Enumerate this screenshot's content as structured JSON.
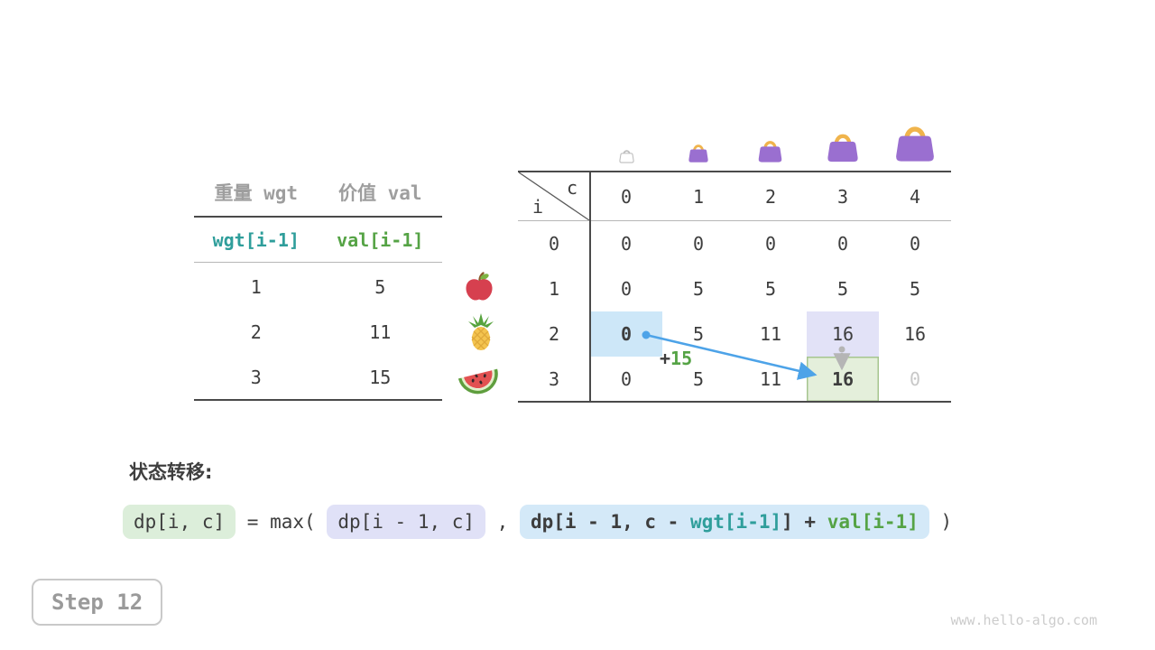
{
  "items_table": {
    "headers": {
      "weight": "重量 wgt",
      "value": "价值 val"
    },
    "formula_row": {
      "weight": "wgt[i-1]",
      "value": "val[i-1]"
    },
    "rows": [
      {
        "wgt": "1",
        "val": "5",
        "fruit": "apple-icon"
      },
      {
        "wgt": "2",
        "val": "11",
        "fruit": "pineapple-icon"
      },
      {
        "wgt": "3",
        "val": "15",
        "fruit": "watermelon-icon"
      }
    ]
  },
  "dp_table": {
    "corner": {
      "row_label": "i",
      "col_label": "c"
    },
    "col_headers": [
      "0",
      "1",
      "2",
      "3",
      "4"
    ],
    "row_headers": [
      "0",
      "1",
      "2",
      "3"
    ],
    "cells": [
      [
        "0",
        "0",
        "0",
        "0",
        "0"
      ],
      [
        "0",
        "5",
        "5",
        "5",
        "5"
      ],
      [
        "0",
        "5",
        "11",
        "16",
        "16"
      ],
      [
        "0",
        "5",
        "11",
        "16",
        "0"
      ]
    ],
    "highlights": [
      {
        "row": 2,
        "col": 0,
        "style": "hl-blue",
        "bold": true
      },
      {
        "row": 2,
        "col": 3,
        "style": "hl-lavender",
        "bold": false
      },
      {
        "row": 3,
        "col": 3,
        "style": "hl-green",
        "bold": true
      }
    ],
    "muted_cells": [
      {
        "row": 3,
        "col": 4
      }
    ],
    "bag_icons": [
      "bag-outline-icon",
      "bag-icon",
      "bag-icon",
      "bag-icon",
      "bag-icon"
    ],
    "annotation": {
      "plus": "+",
      "value": "15"
    },
    "arrows": [
      {
        "name": "take-item-arrow",
        "from": "row2-col0",
        "to": "row3-col3",
        "color": "#4da3e8",
        "label": "+15"
      },
      {
        "name": "keep-item-arrow",
        "from": "row2-col3",
        "to": "row3-col3",
        "color": "#b5b5b5"
      }
    ]
  },
  "transition": {
    "label": "状态转移:",
    "lhs": "dp[i, c]",
    "equals": " = max( ",
    "arg1": "dp[i - 1, c]",
    "comma": " , ",
    "arg2_prefix": "dp[i - 1, c - ",
    "arg2_wgt": "wgt[i-1]",
    "arg2_mid": "] + ",
    "arg2_val": "val[i-1]",
    "close": " )"
  },
  "step_badge": "Step 12",
  "watermark": "www.hello-algo.com",
  "colors": {
    "text_dark": "#3d3d3d",
    "header_gray": "#9e9e9e",
    "teal": "#2f9e9b",
    "green": "#55a345",
    "cell_blue": "#cde7f8",
    "cell_lavender": "#e2e2f7",
    "cell_green": "#e4efdb",
    "arrow_blue": "#4da3e8",
    "arrow_gray": "#b5b5b5",
    "bag_purple": "#9a6fd0",
    "bag_handle": "#f0b44c"
  }
}
